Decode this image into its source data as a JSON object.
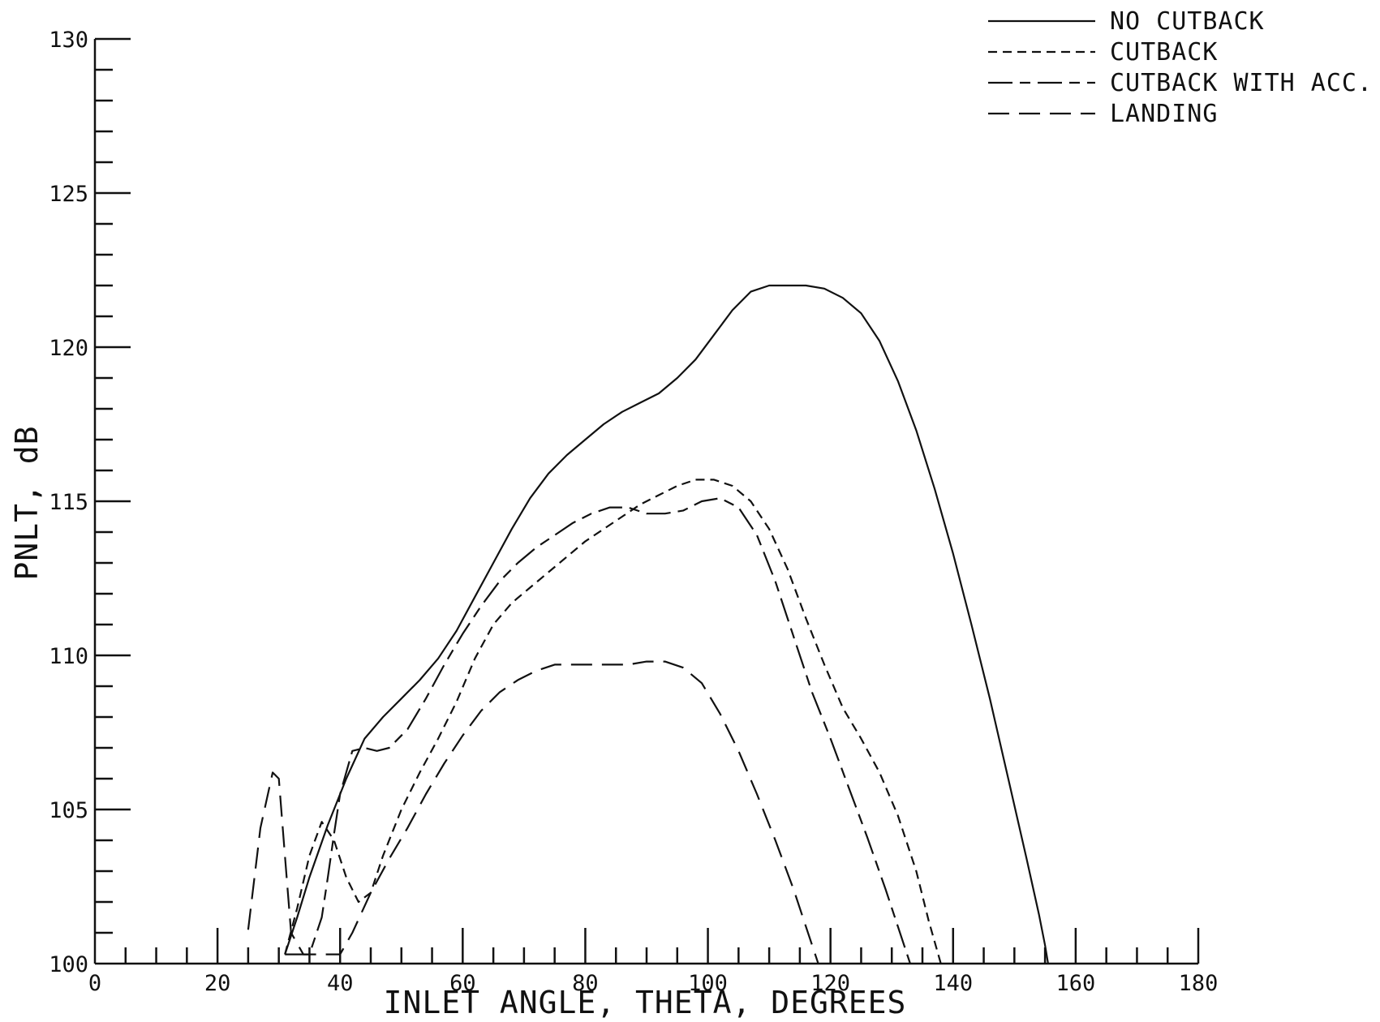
{
  "chart_data": {
    "type": "line",
    "title": "",
    "xlabel": "INLET ANGLE, THETA, DEGREES",
    "ylabel": "PNLT, dB",
    "xlim": [
      0,
      180
    ],
    "ylim": [
      100,
      130
    ],
    "x_ticks": [
      0,
      20,
      40,
      60,
      80,
      100,
      120,
      140,
      160,
      180
    ],
    "x_tick_labels": [
      "0",
      "20",
      "40",
      "60",
      "80",
      "100",
      "120",
      "140",
      "160",
      "180"
    ],
    "y_ticks": [
      100,
      105,
      110,
      115,
      120,
      125,
      130
    ],
    "y_tick_labels": [
      "100",
      "105",
      "110",
      "115",
      "120",
      "125",
      "130"
    ],
    "x_minor_step": 5,
    "y_minor_step": 1,
    "grid": false,
    "legend_position": "top-right",
    "series": [
      {
        "name": "NO CUTBACK",
        "line_style": "solid",
        "points": [
          [
            31,
            100.3
          ],
          [
            33,
            101.5
          ],
          [
            35,
            102.8
          ],
          [
            38,
            104.5
          ],
          [
            41,
            106.0
          ],
          [
            44,
            107.3
          ],
          [
            47,
            108.0
          ],
          [
            50,
            108.6
          ],
          [
            53,
            109.2
          ],
          [
            56,
            109.9
          ],
          [
            59,
            110.8
          ],
          [
            62,
            111.9
          ],
          [
            65,
            113.0
          ],
          [
            68,
            114.1
          ],
          [
            71,
            115.1
          ],
          [
            74,
            115.9
          ],
          [
            77,
            116.5
          ],
          [
            80,
            117.0
          ],
          [
            83,
            117.5
          ],
          [
            86,
            117.9
          ],
          [
            89,
            118.2
          ],
          [
            92,
            118.5
          ],
          [
            95,
            119.0
          ],
          [
            98,
            119.6
          ],
          [
            101,
            120.4
          ],
          [
            104,
            121.2
          ],
          [
            107,
            121.8
          ],
          [
            110,
            122.0
          ],
          [
            113,
            122.0
          ],
          [
            116,
            122.0
          ],
          [
            119,
            121.9
          ],
          [
            122,
            121.6
          ],
          [
            125,
            121.1
          ],
          [
            128,
            120.2
          ],
          [
            131,
            118.9
          ],
          [
            134,
            117.3
          ],
          [
            137,
            115.4
          ],
          [
            140,
            113.3
          ],
          [
            143,
            111.0
          ],
          [
            146,
            108.6
          ],
          [
            149,
            106.0
          ],
          [
            152,
            103.4
          ],
          [
            154,
            101.6
          ],
          [
            155,
            100.6
          ],
          [
            155.5,
            100.0
          ]
        ]
      },
      {
        "name": "CUTBACK",
        "line_style": "dashed",
        "points": [
          [
            31,
            100.3
          ],
          [
            33,
            101.8
          ],
          [
            35,
            103.5
          ],
          [
            37,
            104.6
          ],
          [
            39,
            104.0
          ],
          [
            41,
            102.8
          ],
          [
            43,
            102.0
          ],
          [
            45,
            102.3
          ],
          [
            47,
            103.5
          ],
          [
            50,
            105.0
          ],
          [
            53,
            106.2
          ],
          [
            56,
            107.3
          ],
          [
            59,
            108.5
          ],
          [
            62,
            109.9
          ],
          [
            65,
            111.0
          ],
          [
            68,
            111.7
          ],
          [
            71,
            112.2
          ],
          [
            74,
            112.7
          ],
          [
            77,
            113.2
          ],
          [
            80,
            113.7
          ],
          [
            83,
            114.1
          ],
          [
            86,
            114.5
          ],
          [
            89,
            114.9
          ],
          [
            92,
            115.2
          ],
          [
            95,
            115.5
          ],
          [
            98,
            115.7
          ],
          [
            101,
            115.7
          ],
          [
            104,
            115.5
          ],
          [
            107,
            115.0
          ],
          [
            110,
            114.1
          ],
          [
            113,
            112.8
          ],
          [
            116,
            111.2
          ],
          [
            119,
            109.7
          ],
          [
            122,
            108.3
          ],
          [
            125,
            107.3
          ],
          [
            128,
            106.2
          ],
          [
            131,
            104.8
          ],
          [
            134,
            103.0
          ],
          [
            136,
            101.4
          ],
          [
            138,
            100.0
          ]
        ]
      },
      {
        "name": "CUTBACK WITH ACC.",
        "line_style": "long-short-dash",
        "points": [
          [
            31,
            100.3
          ],
          [
            33,
            100.3
          ],
          [
            35,
            100.3
          ],
          [
            37,
            101.5
          ],
          [
            38,
            102.8
          ],
          [
            39,
            104.2
          ],
          [
            40,
            105.5
          ],
          [
            42,
            106.9
          ],
          [
            44,
            107.0
          ],
          [
            46,
            106.9
          ],
          [
            48,
            107.0
          ],
          [
            51,
            107.6
          ],
          [
            54,
            108.6
          ],
          [
            57,
            109.7
          ],
          [
            60,
            110.7
          ],
          [
            63,
            111.6
          ],
          [
            66,
            112.4
          ],
          [
            69,
            113.0
          ],
          [
            72,
            113.5
          ],
          [
            75,
            113.9
          ],
          [
            78,
            114.3
          ],
          [
            81,
            114.6
          ],
          [
            84,
            114.8
          ],
          [
            87,
            114.8
          ],
          [
            90,
            114.6
          ],
          [
            93,
            114.6
          ],
          [
            96,
            114.7
          ],
          [
            99,
            115.0
          ],
          [
            102,
            115.1
          ],
          [
            105,
            114.8
          ],
          [
            108,
            113.9
          ],
          [
            111,
            112.4
          ],
          [
            114,
            110.6
          ],
          [
            117,
            108.8
          ],
          [
            120,
            107.3
          ],
          [
            123,
            105.7
          ],
          [
            126,
            104.1
          ],
          [
            129,
            102.4
          ],
          [
            131,
            101.2
          ],
          [
            133,
            100.0
          ]
        ]
      },
      {
        "name": "LANDING",
        "line_style": "long-dash",
        "points": [
          [
            25,
            101.1
          ],
          [
            27,
            104.4
          ],
          [
            29,
            106.2
          ],
          [
            30,
            106.0
          ],
          [
            31,
            103.5
          ],
          [
            32,
            101.0
          ],
          [
            34,
            100.3
          ],
          [
            35,
            100.3
          ],
          [
            37,
            100.3
          ],
          [
            40,
            100.3
          ],
          [
            42,
            101.0
          ],
          [
            45,
            102.3
          ],
          [
            48,
            103.4
          ],
          [
            51,
            104.4
          ],
          [
            54,
            105.5
          ],
          [
            57,
            106.5
          ],
          [
            60,
            107.4
          ],
          [
            63,
            108.2
          ],
          [
            66,
            108.8
          ],
          [
            69,
            109.2
          ],
          [
            72,
            109.5
          ],
          [
            75,
            109.7
          ],
          [
            78,
            109.7
          ],
          [
            81,
            109.7
          ],
          [
            84,
            109.7
          ],
          [
            87,
            109.7
          ],
          [
            90,
            109.8
          ],
          [
            93,
            109.8
          ],
          [
            96,
            109.6
          ],
          [
            99,
            109.1
          ],
          [
            102,
            108.1
          ],
          [
            105,
            106.9
          ],
          [
            108,
            105.5
          ],
          [
            111,
            104.0
          ],
          [
            114,
            102.4
          ],
          [
            116,
            101.2
          ],
          [
            118,
            100.0
          ]
        ]
      }
    ]
  }
}
